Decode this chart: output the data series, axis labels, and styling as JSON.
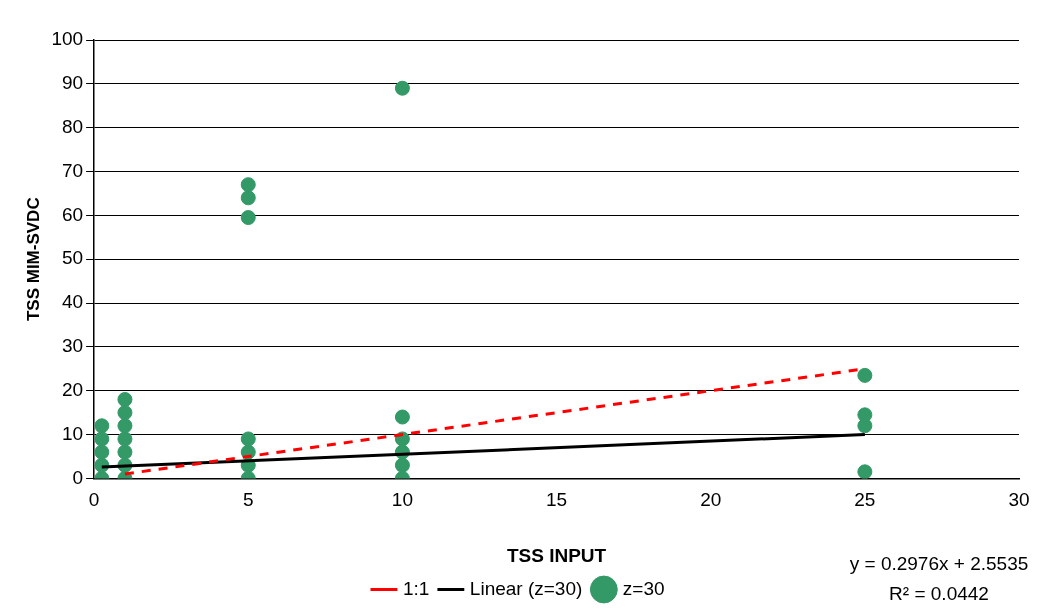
{
  "chart_data": {
    "type": "scatter",
    "xlabel": "TSS INPUT",
    "ylabel": "TSS MIM-SVDC",
    "xlim": [
      0,
      30
    ],
    "xticks": [
      0,
      5,
      10,
      15,
      20,
      25,
      30
    ],
    "ylim": [
      0,
      100
    ],
    "yticks": [
      0,
      10,
      20,
      30,
      40,
      50,
      60,
      70,
      80,
      90,
      100
    ],
    "grid": "y",
    "legend": "bottom",
    "marker": "circle",
    "series": [
      {
        "name": "z=30",
        "color": "#339966",
        "x": [
          0.25,
          0.25,
          0.25,
          0.25,
          0.25,
          1,
          1,
          1,
          1,
          1,
          1,
          1,
          5,
          5,
          5,
          5,
          5,
          5,
          5,
          10,
          10,
          10,
          10,
          10,
          10,
          25,
          25,
          25,
          25
        ],
        "values": [
          0,
          3,
          6,
          9,
          12,
          0,
          3,
          6,
          9,
          12,
          15,
          18,
          0,
          3,
          6,
          9,
          59.5,
          64,
          67,
          0,
          3,
          6,
          9,
          14,
          89,
          1.5,
          12,
          14.5,
          23.5
        ]
      },
      {
        "name": "1:1",
        "color": "#ff0000",
        "type": "line",
        "line_style": "dashed",
        "marker": "none",
        "x": [
          1,
          25
        ],
        "values": [
          1,
          25
        ]
      },
      {
        "name": "Linear (z=30)",
        "color": "#000000",
        "type": "line",
        "line_style": "solid",
        "marker": "none",
        "x": [
          0.25,
          25
        ],
        "values": [
          2.6,
          10
        ]
      }
    ],
    "annotations": [
      "y = 0.2976x + 2.5535",
      "R² = 0.0442"
    ]
  }
}
